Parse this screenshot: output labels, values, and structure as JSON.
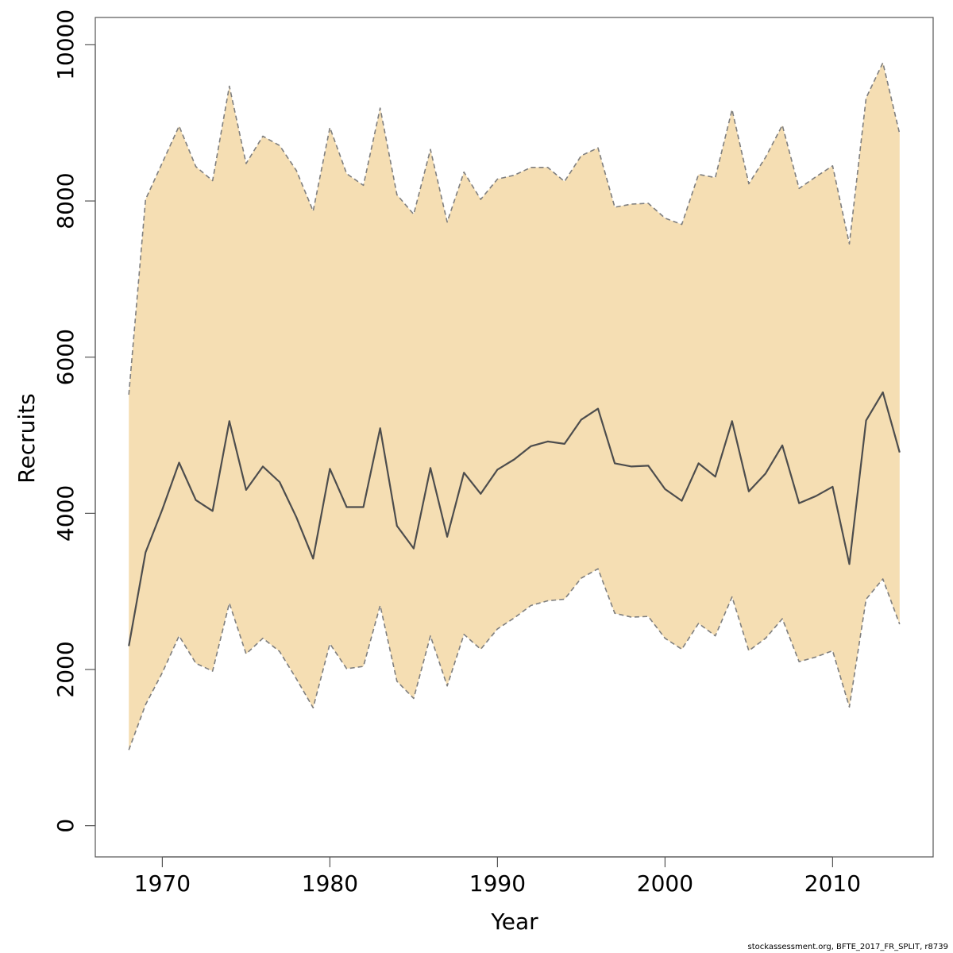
{
  "footer": "stockassessment.org, BFTE_2017_FR_SPLIT, r8739",
  "chart_data": {
    "type": "area",
    "xlabel": "Year",
    "ylabel": "Recruits",
    "xlim": [
      1966,
      2016
    ],
    "ylim": [
      -400,
      10350
    ],
    "x_ticks": [
      1970,
      1980,
      1990,
      2000,
      2010
    ],
    "y_ticks": [
      0,
      2000,
      4000,
      6000,
      8000,
      10000
    ],
    "grid": false,
    "colors": {
      "band": "#F5DEB3",
      "bound_line": "#7F7F7F",
      "estimate_line": "#4D4D4D"
    },
    "x": [
      1968,
      1969,
      1970,
      1971,
      1972,
      1973,
      1974,
      1975,
      1976,
      1977,
      1978,
      1979,
      1980,
      1981,
      1982,
      1983,
      1984,
      1985,
      1986,
      1987,
      1988,
      1989,
      1990,
      1991,
      1992,
      1993,
      1994,
      1995,
      1996,
      1997,
      1998,
      1999,
      2000,
      2001,
      2002,
      2003,
      2004,
      2005,
      2006,
      2007,
      2008,
      2009,
      2010,
      2011,
      2012,
      2013,
      2014
    ],
    "series": [
      {
        "role": "estimate",
        "values": [
          2300,
          3500,
          4050,
          4650,
          4170,
          4030,
          5180,
          4300,
          4600,
          4400,
          3950,
          3420,
          4570,
          4080,
          4080,
          5090,
          3840,
          3550,
          4580,
          3700,
          4520,
          4250,
          4560,
          4690,
          4860,
          4920,
          4890,
          5200,
          5340,
          4640,
          4600,
          4610,
          4310,
          4160,
          4640,
          4470,
          5180,
          4280,
          4510,
          4870,
          4130,
          4220,
          4340,
          3350,
          5190,
          5550,
          4780
        ]
      },
      {
        "role": "lower",
        "values": [
          970,
          1550,
          1960,
          2430,
          2080,
          1980,
          2850,
          2200,
          2400,
          2230,
          1880,
          1510,
          2330,
          2010,
          2040,
          2820,
          1850,
          1630,
          2430,
          1790,
          2450,
          2260,
          2520,
          2660,
          2820,
          2880,
          2900,
          3170,
          3290,
          2720,
          2670,
          2680,
          2400,
          2260,
          2590,
          2430,
          2930,
          2240,
          2400,
          2650,
          2100,
          2160,
          2240,
          1520,
          2900,
          3160,
          2580
        ]
      },
      {
        "role": "upper",
        "values": [
          5520,
          8020,
          8490,
          8960,
          8440,
          8260,
          9470,
          8480,
          8830,
          8710,
          8390,
          7870,
          8940,
          8350,
          8200,
          9190,
          8080,
          7830,
          8660,
          7730,
          8370,
          8020,
          8280,
          8330,
          8430,
          8430,
          8250,
          8580,
          8680,
          7920,
          7960,
          7970,
          7780,
          7700,
          8340,
          8300,
          9170,
          8220,
          8560,
          8970,
          8160,
          8310,
          8450,
          7450,
          9320,
          9770,
          8860
        ]
      }
    ]
  }
}
